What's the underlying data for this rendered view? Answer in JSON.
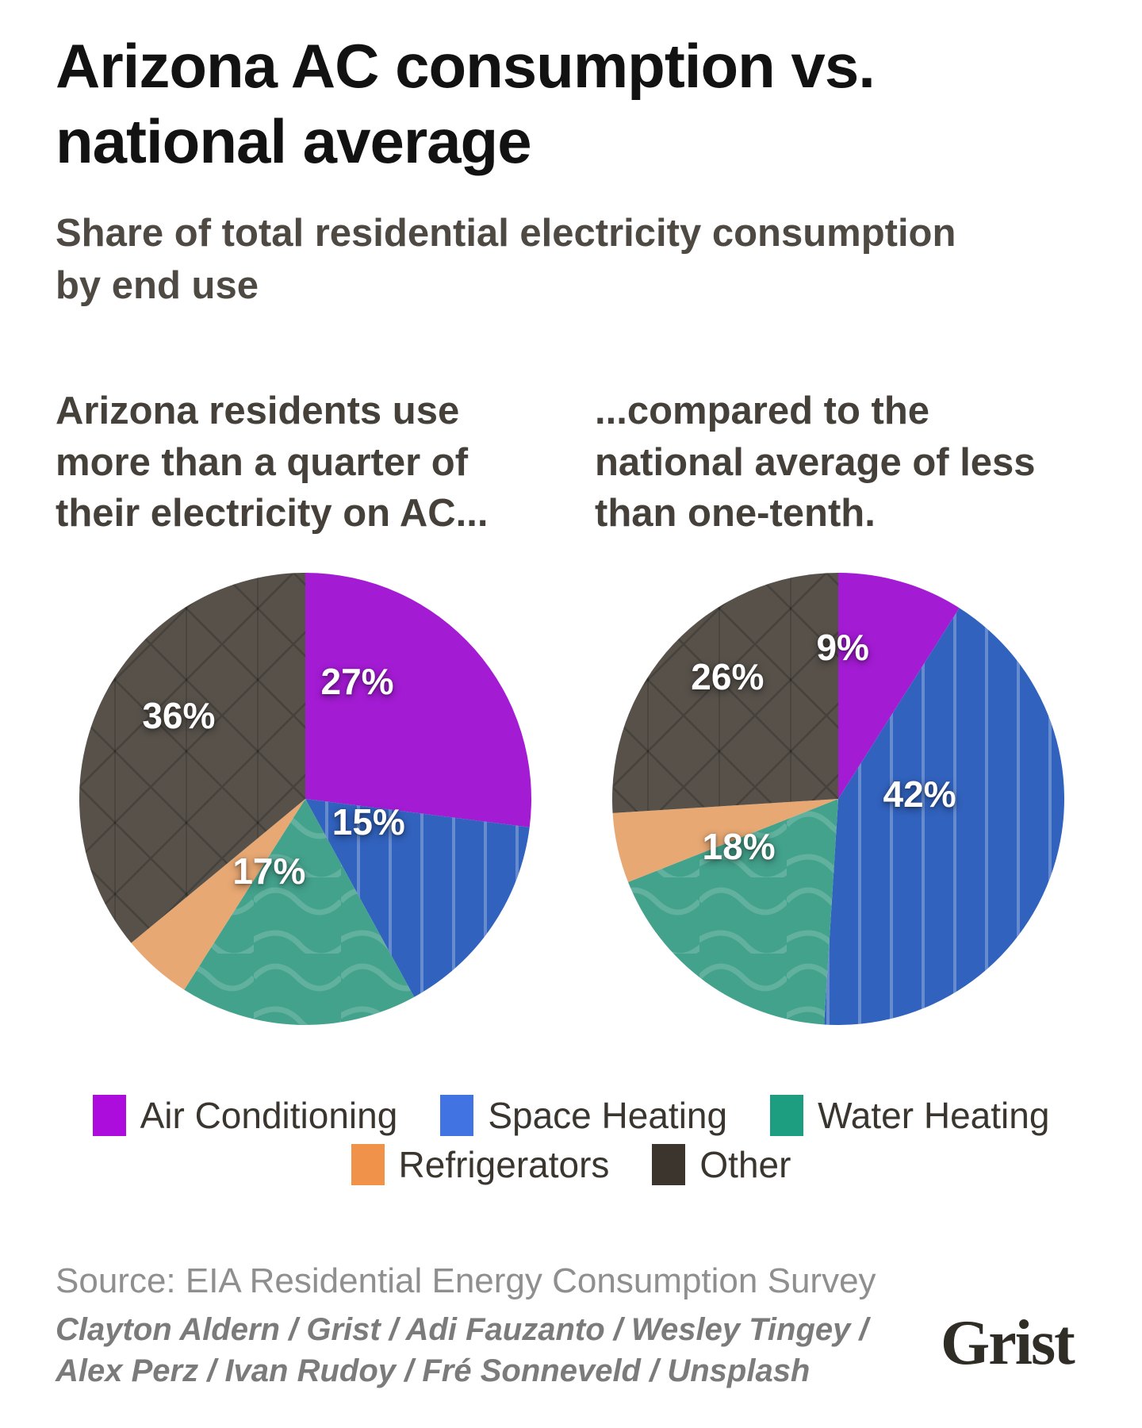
{
  "header": {
    "title": "Arizona AC consumption vs.\nnational average",
    "subtitle": "Share of total residential electricity consumption\nby end use"
  },
  "panels": [
    {
      "heading": "Arizona residents use\nmore than a quarter of\ntheir electricity on AC..."
    },
    {
      "heading": "...compared to the\nnational average of less\nthan one-tenth."
    }
  ],
  "chart_data": [
    {
      "type": "pie",
      "title": "Arizona residents use more than a quarter of their electricity on AC...",
      "unit": "percent of residential electricity consumption",
      "direction": "clockwise",
      "start_angle_deg": 0,
      "slices": [
        {
          "label": "Air Conditioning",
          "value": 27,
          "data_label": "27%",
          "color": "#a41bd4"
        },
        {
          "label": "Space Heating",
          "value": 15,
          "data_label": "15%",
          "color": "#3162be"
        },
        {
          "label": "Water Heating",
          "value": 17,
          "data_label": "17%",
          "color": "#43a28c"
        },
        {
          "label": "Refrigerators",
          "value": 5,
          "data_label": "",
          "color": "#e7a873"
        },
        {
          "label": "Other",
          "value": 36,
          "data_label": "36%",
          "color": "#57514a"
        }
      ]
    },
    {
      "type": "pie",
      "title": "...compared to the national average of less than one-tenth.",
      "unit": "percent of residential electricity consumption",
      "direction": "clockwise",
      "start_angle_deg": 0,
      "slices": [
        {
          "label": "Air Conditioning",
          "value": 9,
          "data_label": "9%",
          "color": "#a41bd4"
        },
        {
          "label": "Space Heating",
          "value": 42,
          "data_label": "42%",
          "color": "#3162be"
        },
        {
          "label": "Water Heating",
          "value": 18,
          "data_label": "18%",
          "color": "#43a28c"
        },
        {
          "label": "Refrigerators",
          "value": 5,
          "data_label": "",
          "color": "#e7a873"
        },
        {
          "label": "Other",
          "value": 26,
          "data_label": "26%",
          "color": "#57514a"
        }
      ]
    }
  ],
  "legend": {
    "items": [
      {
        "label": "Air Conditioning",
        "color": "#ac0cdc"
      },
      {
        "label": "Space Heating",
        "color": "#4273e2"
      },
      {
        "label": "Water Heating",
        "color": "#1e9e80"
      },
      {
        "label": "Refrigerators",
        "color": "#f0924a"
      },
      {
        "label": "Other",
        "color": "#3b352d"
      }
    ]
  },
  "footer": {
    "source": "Source: EIA Residential Energy Consumption Survey",
    "credits": "Clayton Aldern / Grist / Adi Fauzanto / Wesley Tingey /\nAlex Perz / Ivan Rudoy / Fré Sonneveld / Unsplash",
    "logo": "Grist"
  }
}
